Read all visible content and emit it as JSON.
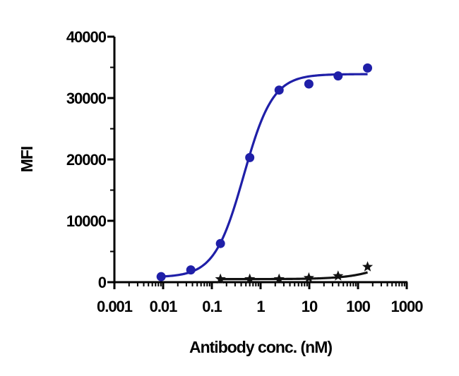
{
  "chart_data": {
    "type": "scatter",
    "xlabel": "Antibody conc. (nM)",
    "ylabel": "MFI",
    "xscale": "log",
    "xlim": [
      0.001,
      1000
    ],
    "ylim": [
      0,
      40000
    ],
    "x_ticks": [
      "0.001",
      "0.01",
      "0.1",
      "1",
      "10",
      "100",
      "1000"
    ],
    "y_ticks": [
      "0",
      "10000",
      "20000",
      "30000",
      "40000"
    ],
    "grid": false,
    "legend": "none",
    "series": [
      {
        "color": "#1f1fa8",
        "marker": "circle",
        "points": [
          {
            "x": 0.0091,
            "y": 900
          },
          {
            "x": 0.037,
            "y": 2000
          },
          {
            "x": 0.15,
            "y": 6300
          },
          {
            "x": 0.6,
            "y": 20300
          },
          {
            "x": 2.4,
            "y": 31300
          },
          {
            "x": 9.8,
            "y": 32300
          },
          {
            "x": 39,
            "y": 33600
          },
          {
            "x": 157,
            "y": 34900
          }
        ],
        "fit": {
          "bottom": 800,
          "top": 33900,
          "ec50": 0.45,
          "hill": 1.45,
          "x_from": 0.009,
          "x_to": 157
        }
      },
      {
        "color": "#111111",
        "marker": "star",
        "points": [
          {
            "x": 0.15,
            "y": 500
          },
          {
            "x": 0.6,
            "y": 500
          },
          {
            "x": 2.4,
            "y": 500
          },
          {
            "x": 9.8,
            "y": 700
          },
          {
            "x": 39,
            "y": 1000
          },
          {
            "x": 157,
            "y": 2500
          }
        ],
        "fit": {
          "bottom": 500,
          "top": 10000,
          "ec50": 1200,
          "hill": 1.0,
          "x_from": 0.15,
          "x_to": 157
        }
      }
    ]
  }
}
